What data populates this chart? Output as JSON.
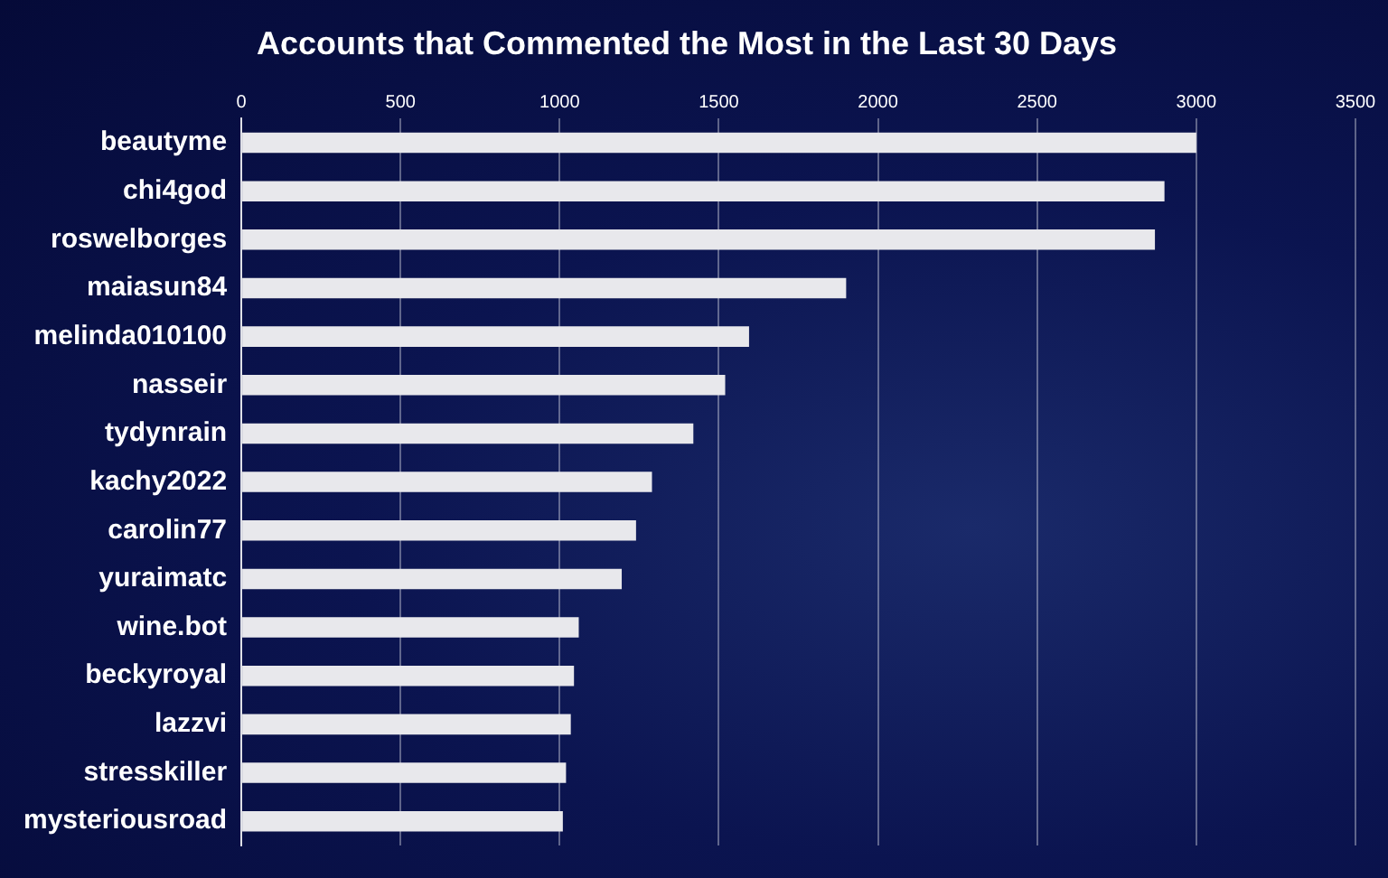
{
  "chart_data": {
    "type": "bar",
    "orientation": "horizontal",
    "title": "Accounts that Commented the Most in the Last 30 Days",
    "categories": [
      "beautyme",
      "chi4god",
      "roswelborges",
      "maiasun84",
      "melinda010100",
      "nasseir",
      "tydynrain",
      "kachy2022",
      "carolin77",
      "yuraimatc",
      "wine.bot",
      "beckyroyal",
      "lazzvi",
      "stresskiller",
      "mysteriousroad"
    ],
    "values": [
      3000,
      2900,
      2870,
      1900,
      1595,
      1520,
      1420,
      1290,
      1240,
      1195,
      1060,
      1045,
      1035,
      1020,
      1010
    ],
    "color": "#e8e8ec",
    "xlim": [
      0,
      3500
    ],
    "xticks": [
      0,
      500,
      1000,
      1500,
      2000,
      2500,
      3000,
      3500
    ],
    "grid": "x",
    "legend": false
  }
}
